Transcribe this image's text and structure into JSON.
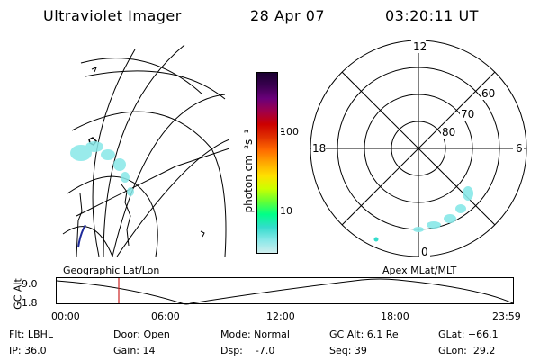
{
  "header": {
    "title": "Ultraviolet Imager",
    "date": "28 Apr 07",
    "time": "03:20:11 UT"
  },
  "colorbar": {
    "label": "photon cm⁻²s⁻¹",
    "ticks": [
      "100",
      "10"
    ],
    "scale": "log",
    "colors": [
      "#1a0030",
      "#3a0050",
      "#6a007a",
      "#a0004a",
      "#cc0000",
      "#e03000",
      "#ff6a00",
      "#ffa800",
      "#ffe000",
      "#ccff00",
      "#66ff33",
      "#00ff88",
      "#33dccc",
      "#88e8e8",
      "#cfeeee"
    ]
  },
  "geo_map": {
    "label": "Geographic Lat/Lon"
  },
  "polar_plot": {
    "label": "Apex MLat/MLT",
    "mlt_labels": [
      "12",
      "18",
      "6",
      "0"
    ],
    "lat_labels": [
      "60",
      "70",
      "80"
    ]
  },
  "timeline": {
    "axis_title": "GC Alt",
    "y_ticks": [
      "9.0",
      "1.8"
    ],
    "x_ticks": [
      "00:00",
      "06:00",
      "12:00",
      "18:00",
      "23:59"
    ],
    "marker_time": "03:20"
  },
  "info": {
    "flt": "Flt: LBHL",
    "ip": "IP: 36.0",
    "door": "Door: Open",
    "gain": "Gain: 14",
    "mode": "Mode: Normal",
    "dsp": "Dsp:    -7.0",
    "gcalt": "GC Alt: 6.1 Re",
    "seq": "Seq: 39",
    "glat": "GLat: −66.1",
    "glon": "GLon:  29.2"
  }
}
